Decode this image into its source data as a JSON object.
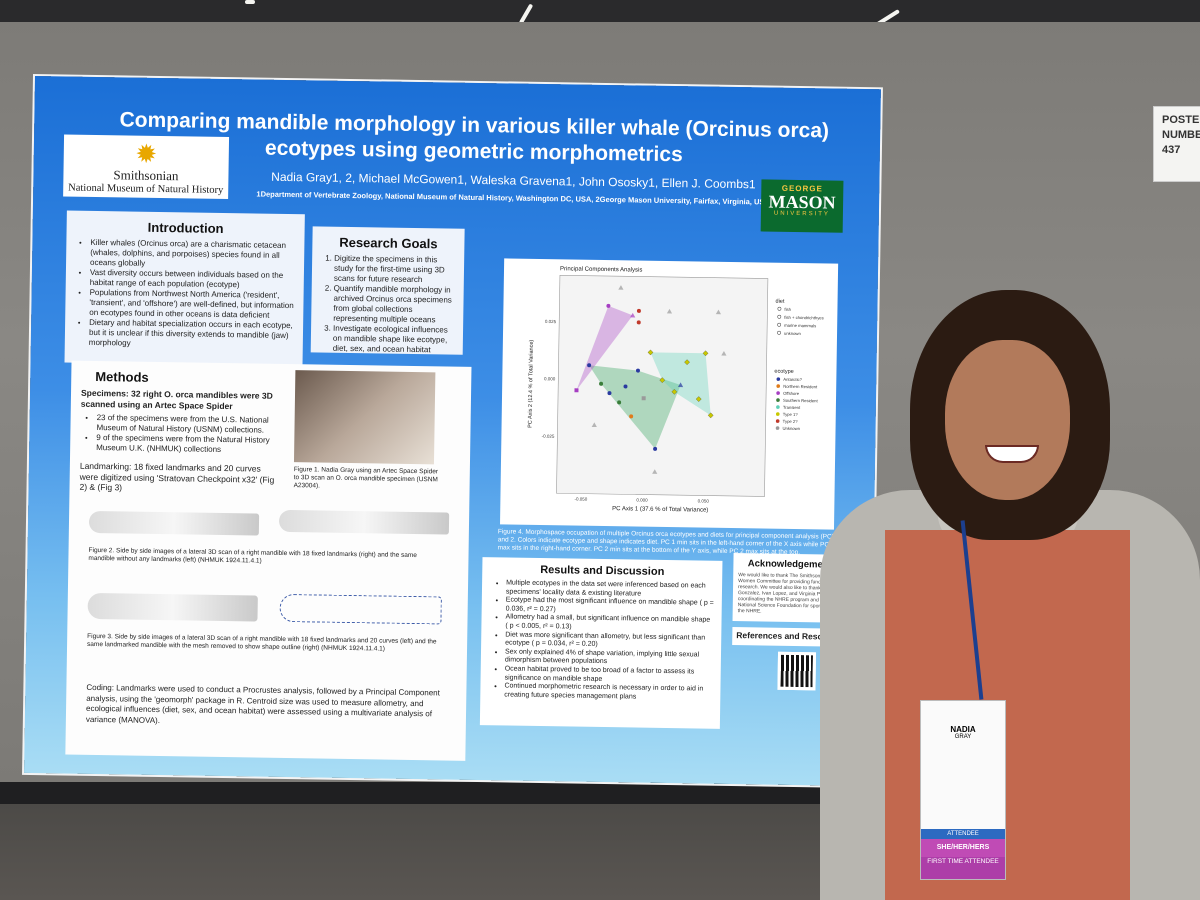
{
  "poster_number": {
    "line1": "POSTER",
    "line2": "NUMBER",
    "number": "437"
  },
  "poster": {
    "title_line1": "Comparing  mandible morphology in various killer whale (Orcinus orca)",
    "title_line2": "ecotypes using geometric morphometrics",
    "authors": "Nadia Gray1, 2, Michael McGowen1, Waleska Gravena1, John Ososky1, Ellen J. Coombs1",
    "affiliation": "1Department of Vertebrate Zoology, National Museum of Natural History, Washington DC, USA, 2George Mason University, Fairfax, Virginia, USA",
    "logo_si": {
      "line1": "Smithsonian",
      "line2": "National Museum of Natural History"
    },
    "logo_gmu": {
      "top": "GEORGE",
      "main": "MASON",
      "bottom": "UNIVERSITY"
    },
    "introduction": {
      "heading": "Introduction",
      "items": [
        "Killer whales (Orcinus orca) are a charismatic cetacean (whales, dolphins, and porpoises) species found in all oceans globally",
        "Vast diversity occurs between individuals based on the habitat range of each population (ecotype)",
        "Populations from Northwest North America ('resident', 'transient', and 'offshore') are well-defined, but information on ecotypes found in other oceans is data deficient",
        "Dietary and habitat specialization occurs in each ecotype, but it is unclear if this diversity extends to mandible (jaw) morphology"
      ]
    },
    "research_goals": {
      "heading": "Research Goals",
      "items": [
        "Digitize the specimens in this study for the first-time using 3D scans for future research",
        "Quantify mandible morphology in archived Orcinus orca specimens from global collections representing multiple oceans",
        "Investigate ecological influences on mandible shape like ecotype, diet, sex, and ocean habitat"
      ]
    },
    "methods": {
      "heading": "Methods",
      "specimens": "Specimens: 32 right O. orca mandibles were 3D scanned using an Artec Space Spider",
      "bullet1": "23 of the specimens were from the U.S. National Museum of Natural History (USNM) collections.",
      "bullet2": "9 of the specimens were from the Natural History Museum U.K. (NHMUK) collections",
      "fig1": "Figure 1. Nadia Gray using an Artec Space Spider to 3D scan an O. orca mandible specimen (USNM A23004).",
      "landmarking": "Landmarking: 18 fixed landmarks and 20 curves were digitized using 'Stratovan Checkpoint x32' (Fig 2) & (Fig 3)",
      "fig2": "Figure 2. Side by side images of a lateral 3D scan of a right mandible with 18 fixed landmarks (right) and the same mandible without any landmarks (left) (NHMUK 1924.11.4.1)",
      "fig3": "Figure 3. Side by side images of a lateral 3D scan of a right mandible with 18 fixed landmarks and 20 curves (left) and the same landmarked mandible with the mesh removed to show shape outline (right) (NHMUK 1924.11.4.1)",
      "coding": "Coding: Landmarks were used to conduct a Procrustes analysis, followed by a Principal Component analysis, using the 'geomorph' package in R. Centroid size was used to measure allometry, and ecological influences (diet, sex, and ocean habitat) were assessed using a multivariate analysis of variance (MANOVA)."
    },
    "figure4": "Figure 4. Morphospace occupation of multiple Orcinus orca ecotypes and diets for principal component analysis (PC) 1 and 2. Colors indicate ecotype and shape indicates diet. PC 1 min sits in the left-hand corner of the X axis while PC 1 max sits in the right-hand corner. PC 2 min sits at the bottom of the Y axis, while PC 2 max sits at the top.",
    "results": {
      "heading": "Results and Discussion",
      "items": [
        "Multiple ecotypes in the data set were inferenced based on each specimens' locality data & existing literature",
        "Ecotype had the most significant influence on mandible shape ( p = 0.036, r² = 0.27)",
        "Allometry had a small, but significant influence on mandible shape ( p < 0.005, r² = 0.13)",
        "Diet was more significant than allometry, but less significant than ecotype ( p = 0.034, r² = 0.20)",
        "Sex only explained 4% of shape variation, implying little sexual dimorphism between populations",
        "Ocean habitat proved to be too broad of a factor to assess its significance on mandible shape",
        "Continued morphometric research is necessary in order to aid in creating future species management plans"
      ]
    },
    "acknowledgements": {
      "heading": "Acknowledgements",
      "text": "We would like to thank The Smithsonian's Women Committee for providing funding for this research. We would also like to thank Vanessa Gonzalez, Ivan Lopez, and Virginia Power for coordinating the NHRE program and the National Science Foundation for sponsoring of the NHRE."
    },
    "references": "References and Resour"
  },
  "badge": {
    "name": "NADIA",
    "surname": "GRAY",
    "pronoun": "SHE/HER/HERS",
    "attendee": "ATTENDEE",
    "first_time": "FIRST TIME ATTENDEE"
  },
  "chart_data": {
    "type": "scatter",
    "title": "Principal Components Analysis",
    "xlabel": "PC Axis 1 (37.6 % of Total Variance)",
    "ylabel": "PC Axis 2 (12.4 % of Total Variance)",
    "xticks": [
      "-0.050",
      "0.000",
      "0.050"
    ],
    "yticks": [
      "-0.025",
      "0.000",
      "0.025"
    ],
    "xlim": [
      -0.07,
      0.1
    ],
    "ylim": [
      -0.05,
      0.045
    ],
    "legend_diet_title": "diet",
    "legend_diet": [
      "fish",
      "fish + chondrichthyes",
      "marine mammals",
      "unknown"
    ],
    "legend_ecotype_title": "ecotype",
    "legend_ecotype": [
      "Antarctic?",
      "Northern Resident",
      "Offshore",
      "Southern Resident",
      "Transient",
      "Type 1?",
      "Type 2?",
      "Unknown"
    ],
    "ecotype_colors": [
      "#2a3aa0",
      "#e07b1a",
      "#a63ec2",
      "#3a7d3a",
      "#5fd0b8",
      "#c8c800",
      "#c0392b",
      "#9a9a9a"
    ],
    "points": [
      {
        "x": -0.03,
        "y": 0.032,
        "ecotype": 2,
        "shape": "circle"
      },
      {
        "x": -0.01,
        "y": 0.028,
        "ecotype": 2,
        "shape": "triangle"
      },
      {
        "x": -0.005,
        "y": 0.025,
        "ecotype": 6,
        "shape": "circle"
      },
      {
        "x": -0.005,
        "y": 0.03,
        "ecotype": 6,
        "shape": "circle"
      },
      {
        "x": -0.045,
        "y": 0.006,
        "ecotype": 0,
        "shape": "circle"
      },
      {
        "x": -0.035,
        "y": -0.002,
        "ecotype": 3,
        "shape": "circle"
      },
      {
        "x": -0.028,
        "y": -0.006,
        "ecotype": 0,
        "shape": "circle"
      },
      {
        "x": -0.02,
        "y": -0.01,
        "ecotype": 3,
        "shape": "circle"
      },
      {
        "x": -0.015,
        "y": -0.003,
        "ecotype": 0,
        "shape": "circle"
      },
      {
        "x": -0.005,
        "y": 0.004,
        "ecotype": 0,
        "shape": "circle"
      },
      {
        "x": 0.0,
        "y": -0.008,
        "ecotype": 7,
        "shape": "square"
      },
      {
        "x": -0.01,
        "y": -0.016,
        "ecotype": 1,
        "shape": "circle"
      },
      {
        "x": 0.01,
        "y": -0.03,
        "ecotype": 0,
        "shape": "circle"
      },
      {
        "x": -0.055,
        "y": -0.005,
        "ecotype": 2,
        "shape": "square"
      },
      {
        "x": 0.005,
        "y": 0.012,
        "ecotype": 5,
        "shape": "diamond"
      },
      {
        "x": 0.035,
        "y": 0.008,
        "ecotype": 5,
        "shape": "diamond"
      },
      {
        "x": 0.03,
        "y": -0.002,
        "ecotype": 0,
        "shape": "triangle"
      },
      {
        "x": 0.025,
        "y": -0.005,
        "ecotype": 5,
        "shape": "diamond"
      },
      {
        "x": 0.045,
        "y": -0.008,
        "ecotype": 5,
        "shape": "diamond"
      },
      {
        "x": 0.055,
        "y": -0.015,
        "ecotype": 5,
        "shape": "diamond"
      },
      {
        "x": 0.015,
        "y": 0.0,
        "ecotype": 5,
        "shape": "diamond"
      },
      {
        "x": 0.05,
        "y": 0.012,
        "ecotype": 5,
        "shape": "diamond"
      },
      {
        "x": -0.02,
        "y": 0.04,
        "ecotype": 7,
        "shape": "triangle"
      },
      {
        "x": 0.02,
        "y": 0.03,
        "ecotype": 7,
        "shape": "triangle"
      },
      {
        "x": 0.06,
        "y": 0.03,
        "ecotype": 7,
        "shape": "triangle"
      },
      {
        "x": 0.065,
        "y": 0.012,
        "ecotype": 7,
        "shape": "triangle"
      },
      {
        "x": 0.01,
        "y": -0.04,
        "ecotype": 7,
        "shape": "triangle"
      },
      {
        "x": -0.04,
        "y": -0.02,
        "ecotype": 7,
        "shape": "triangle"
      }
    ]
  }
}
